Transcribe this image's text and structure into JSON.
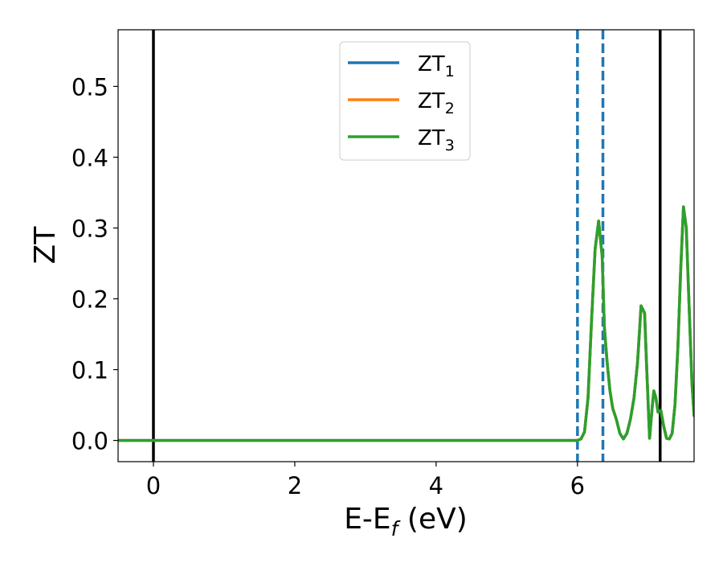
{
  "chart_data": {
    "type": "line",
    "xlabel": "E-E",
    "xlabel_sub": "f",
    "xlabel_unit": " (eV)",
    "ylabel": "ZT",
    "xlim": [
      -0.5,
      7.65
    ],
    "ylim": [
      -0.03,
      0.58
    ],
    "xticks": [
      0,
      2,
      4,
      6
    ],
    "xtick_labels": [
      "0",
      "2",
      "4",
      "6"
    ],
    "yticks": [
      0.0,
      0.1,
      0.2,
      0.3,
      0.4,
      0.5
    ],
    "ytick_labels": [
      "0.0",
      "0.1",
      "0.2",
      "0.3",
      "0.4",
      "0.5"
    ],
    "legend_position": "top-center",
    "vlines_solid": [
      0.0,
      7.17
    ],
    "vlines_dashed": [
      6.0,
      6.36
    ],
    "series": [
      {
        "name": "ZT",
        "sub": "1",
        "color": "#1f77b4",
        "x": [
          -0.5,
          0.0,
          1.0,
          2.0,
          3.0,
          4.0,
          5.0,
          6.0,
          6.05,
          6.1,
          6.15,
          6.2,
          6.25,
          6.3,
          6.35,
          6.38,
          6.42,
          6.46,
          6.5,
          6.55,
          6.6,
          6.65,
          6.7,
          6.75,
          6.8,
          6.85,
          6.9,
          6.95,
          6.98,
          7.02,
          7.06,
          7.08,
          7.11,
          7.14,
          7.18,
          7.22,
          7.26,
          7.3,
          7.34,
          7.38,
          7.42,
          7.46,
          7.5,
          7.54,
          7.58,
          7.62,
          7.65
        ],
        "y": [
          0.0,
          0.0,
          0.0,
          0.0,
          0.0,
          0.0,
          0.0,
          0.0,
          0.002,
          0.012,
          0.06,
          0.17,
          0.27,
          0.31,
          0.26,
          0.16,
          0.11,
          0.07,
          0.045,
          0.03,
          0.01,
          0.002,
          0.01,
          0.03,
          0.06,
          0.11,
          0.19,
          0.18,
          0.1,
          0.003,
          0.05,
          0.07,
          0.06,
          0.04,
          0.042,
          0.02,
          0.003,
          0.002,
          0.01,
          0.05,
          0.13,
          0.24,
          0.33,
          0.3,
          0.19,
          0.08,
          0.035
        ]
      },
      {
        "name": "ZT",
        "sub": "2",
        "color": "#ff7f0e",
        "x": [
          -0.5,
          0.0,
          1.0,
          2.0,
          3.0,
          4.0,
          5.0,
          6.0,
          6.05,
          6.1,
          6.15,
          6.2,
          6.25,
          6.3,
          6.35,
          6.38,
          6.42,
          6.46,
          6.5,
          6.55,
          6.6,
          6.65,
          6.7,
          6.75,
          6.8,
          6.85,
          6.9,
          6.95,
          6.98,
          7.02,
          7.06,
          7.08,
          7.11,
          7.14,
          7.18,
          7.22,
          7.26,
          7.3,
          7.34,
          7.38,
          7.42,
          7.46,
          7.5,
          7.54,
          7.58,
          7.62,
          7.65
        ],
        "y": [
          0.0,
          0.0,
          0.0,
          0.0,
          0.0,
          0.0,
          0.0,
          0.0,
          0.002,
          0.012,
          0.06,
          0.17,
          0.27,
          0.31,
          0.26,
          0.16,
          0.11,
          0.07,
          0.045,
          0.03,
          0.01,
          0.002,
          0.01,
          0.03,
          0.06,
          0.11,
          0.19,
          0.18,
          0.1,
          0.003,
          0.05,
          0.07,
          0.06,
          0.04,
          0.042,
          0.02,
          0.003,
          0.002,
          0.01,
          0.05,
          0.13,
          0.24,
          0.33,
          0.3,
          0.19,
          0.08,
          0.035
        ]
      },
      {
        "name": "ZT",
        "sub": "3",
        "color": "#2ca02c",
        "x": [
          -0.5,
          0.0,
          1.0,
          2.0,
          3.0,
          4.0,
          5.0,
          6.0,
          6.05,
          6.1,
          6.15,
          6.2,
          6.25,
          6.3,
          6.35,
          6.38,
          6.42,
          6.46,
          6.5,
          6.55,
          6.6,
          6.65,
          6.7,
          6.75,
          6.8,
          6.85,
          6.9,
          6.95,
          6.98,
          7.02,
          7.06,
          7.08,
          7.11,
          7.14,
          7.18,
          7.22,
          7.26,
          7.3,
          7.34,
          7.38,
          7.42,
          7.46,
          7.5,
          7.54,
          7.58,
          7.62,
          7.65
        ],
        "y": [
          0.0,
          0.0,
          0.0,
          0.0,
          0.0,
          0.0,
          0.0,
          0.0,
          0.002,
          0.012,
          0.06,
          0.17,
          0.27,
          0.31,
          0.26,
          0.16,
          0.11,
          0.07,
          0.045,
          0.03,
          0.01,
          0.002,
          0.01,
          0.03,
          0.06,
          0.11,
          0.19,
          0.18,
          0.1,
          0.003,
          0.05,
          0.07,
          0.06,
          0.04,
          0.042,
          0.02,
          0.003,
          0.002,
          0.01,
          0.05,
          0.13,
          0.24,
          0.33,
          0.3,
          0.19,
          0.08,
          0.035
        ]
      }
    ]
  }
}
